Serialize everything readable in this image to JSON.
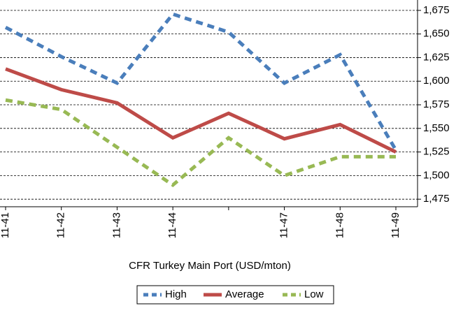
{
  "chart_data": {
    "type": "line",
    "x_label": "CFR Turkey Main Port (USD/mton)",
    "categories": [
      "11-41",
      "11-42",
      "11-43",
      "11-44",
      null,
      "11-47",
      "11-48",
      "11-49"
    ],
    "series": [
      {
        "name": "High",
        "color": "#4a7ebb",
        "dashed": true,
        "values": [
          1657,
          1626,
          1598,
          1671,
          1652,
          1598,
          1628,
          1527
        ]
      },
      {
        "name": "Average",
        "color": "#be4b48",
        "dashed": false,
        "values": [
          1613,
          1591,
          1577,
          1540,
          1566,
          1539,
          1554,
          1525
        ]
      },
      {
        "name": "Low",
        "color": "#98b954",
        "dashed": true,
        "values": [
          1580,
          1570,
          1530,
          1490,
          1540,
          1500,
          1520,
          1520
        ]
      }
    ],
    "ylim": [
      1467,
      1686
    ],
    "yticks": [
      {
        "value": 1475,
        "label": "1,475"
      },
      {
        "value": 1500,
        "label": "1,500"
      },
      {
        "value": 1525,
        "label": "1,525"
      },
      {
        "value": 1550,
        "label": "1,550"
      },
      {
        "value": 1575,
        "label": "1,575"
      },
      {
        "value": 1600,
        "label": "1,600"
      },
      {
        "value": 1625,
        "label": "1,625"
      },
      {
        "value": 1650,
        "label": "1,650"
      },
      {
        "value": 1675,
        "label": "1,675"
      }
    ],
    "grid": true,
    "legend": "bottom"
  }
}
